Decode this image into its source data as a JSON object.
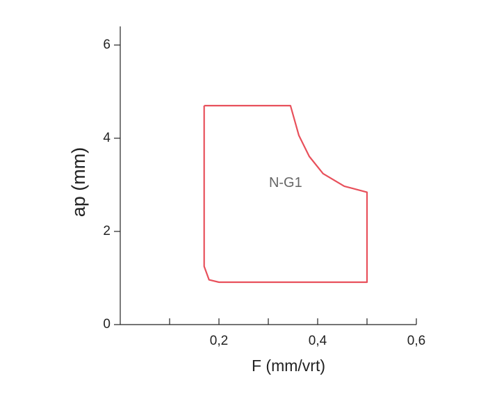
{
  "chart_data": {
    "type": "line",
    "xlabel": "F (mm/vrt)",
    "ylabel": "ap (mm)",
    "xlim": [
      0,
      0.6
    ],
    "ylim": [
      0,
      6.4
    ],
    "xticks": [
      {
        "value": 0.2,
        "label": "0,2"
      },
      {
        "value": 0.4,
        "label": "0,4"
      },
      {
        "value": 0.6,
        "label": "0,6"
      }
    ],
    "xminor_ticks": [
      0.1,
      0.3,
      0.5
    ],
    "yticks": [
      0,
      2,
      4,
      6
    ],
    "series": [
      {
        "color": "#e8505b",
        "x": [
          0.17,
          0.345,
          0.362,
          0.383,
          0.411,
          0.454,
          0.5,
          0.5,
          0.2,
          0.18,
          0.17,
          0.17
        ],
        "y": [
          4.7,
          4.7,
          4.06,
          3.61,
          3.24,
          2.97,
          2.84,
          0.91,
          0.91,
          0.96,
          1.25,
          4.7
        ]
      }
    ],
    "annotations": [
      {
        "text": "N-G1",
        "x": 0.335,
        "y": 3.03,
        "color": "#666666"
      }
    ]
  }
}
